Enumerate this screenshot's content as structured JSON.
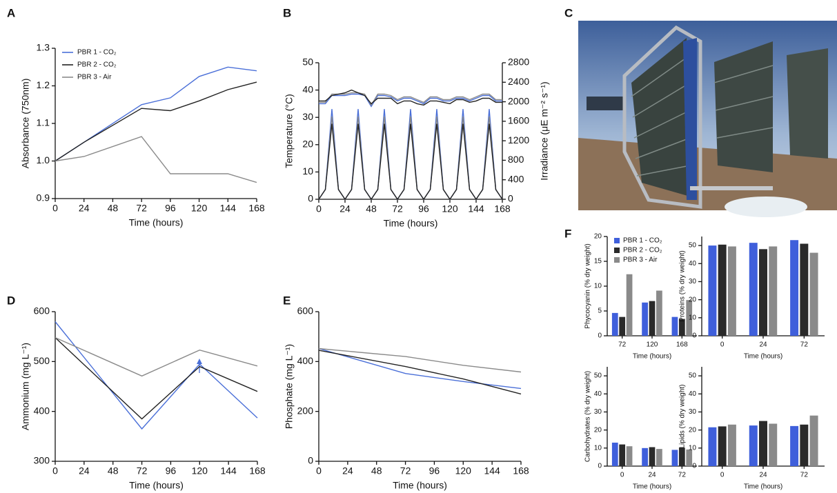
{
  "photo": {
    "panel": "C"
  },
  "chart_data": [
    {
      "type": "line",
      "panel": "A",
      "y_label": "Absorbance (750nm)",
      "x_label": "Time (hours)",
      "x": [
        0,
        24,
        72,
        96,
        120,
        144,
        168
      ],
      "xlim": [
        0,
        168
      ],
      "xticks": [
        0,
        24,
        48,
        72,
        96,
        120,
        144,
        168
      ],
      "ylim": [
        0.9,
        1.3
      ],
      "yticks": [
        0.9,
        {
          "value": 1,
          "label": "1.0"
        },
        1.1,
        1.2,
        1.3
      ],
      "legend": "upper left",
      "series": [
        {
          "name": "PBR 1 - CO₂",
          "color": "#4a6fd8",
          "values": [
            1.0,
            1.05,
            1.15,
            1.168,
            1.225,
            1.25,
            1.24
          ]
        },
        {
          "name": "PBR 2 - CO₂",
          "color": "#222222",
          "values": [
            1.0,
            1.05,
            1.14,
            1.134,
            1.16,
            1.19,
            1.21
          ]
        },
        {
          "name": "PBR 3 - Air",
          "color": "#8a8a8a",
          "values": [
            1.0,
            1.012,
            1.065,
            0.966,
            0.966,
            0.966,
            0.943
          ]
        }
      ]
    },
    {
      "type": "line",
      "panel": "B",
      "y_label": "Temperature (°C)",
      "y2_label": "Irradiance (μE m⁻² s⁻¹)",
      "x_label": "Time (hours)",
      "x": [
        0,
        6,
        12,
        18,
        24,
        30,
        36,
        42,
        48,
        54,
        60,
        66,
        72,
        78,
        84,
        90,
        96,
        102,
        108,
        114,
        120,
        126,
        132,
        138,
        144,
        150,
        156,
        162,
        168
      ],
      "xlim": [
        0,
        168
      ],
      "xticks": [
        0,
        24,
        48,
        72,
        96,
        120,
        144,
        168
      ],
      "ylim": [
        0,
        50
      ],
      "yticks": [
        0,
        10,
        20,
        30,
        40,
        50
      ],
      "y2lim": [
        0,
        2800
      ],
      "y2ticks": [
        0,
        400,
        800,
        1200,
        1600,
        2000,
        2400,
        2800
      ],
      "series": [
        {
          "color": "#4a6fd8",
          "values": [
            35,
            35,
            38,
            38,
            38,
            38.5,
            38.5,
            38,
            34,
            38,
            38,
            37.5,
            36,
            37,
            37,
            36,
            35,
            37,
            37,
            36,
            36,
            37,
            37,
            36,
            37,
            38,
            38,
            36,
            36
          ]
        },
        {
          "color": "#8a8a8a",
          "values": [
            35.5,
            35.5,
            38.5,
            38.5,
            38.5,
            39,
            39,
            38.5,
            34.5,
            38.5,
            38.5,
            38,
            36.5,
            37.5,
            37.5,
            36.5,
            35.5,
            37.5,
            37.5,
            36.5,
            36.5,
            37.5,
            37.5,
            36.5,
            37.5,
            38.5,
            38.5,
            36.5,
            36.5
          ]
        },
        {
          "color": "#222222",
          "values": [
            36,
            36,
            38,
            38.5,
            39,
            40,
            39,
            38,
            35,
            37,
            37,
            37,
            35,
            36,
            36,
            35,
            34.5,
            36,
            36,
            35.5,
            35,
            36.5,
            36.5,
            35.5,
            36,
            37,
            37,
            35.5,
            35.5
          ]
        },
        {
          "color": "#4a6fd8",
          "axis": "y2",
          "values": [
            0,
            200,
            1850,
            200,
            0,
            200,
            1850,
            200,
            0,
            200,
            1850,
            200,
            0,
            200,
            1850,
            200,
            0,
            200,
            1850,
            200,
            0,
            200,
            1850,
            200,
            0,
            200,
            1850,
            200,
            0
          ]
        },
        {
          "color": "#8a8a8a",
          "axis": "y2",
          "values": [
            0,
            200,
            1700,
            200,
            0,
            200,
            1700,
            200,
            0,
            200,
            1700,
            200,
            0,
            200,
            1700,
            200,
            0,
            200,
            1700,
            200,
            0,
            200,
            1700,
            200,
            0,
            200,
            1700,
            200,
            0
          ]
        },
        {
          "color": "#222222",
          "axis": "y2",
          "values": [
            0,
            200,
            1550,
            200,
            0,
            200,
            1550,
            200,
            0,
            200,
            1550,
            200,
            0,
            200,
            1550,
            200,
            0,
            200,
            1550,
            200,
            0,
            200,
            1550,
            200,
            0,
            200,
            1550,
            200,
            0
          ]
        }
      ]
    },
    {
      "type": "line",
      "panel": "D",
      "y_label": "Ammonium (mg L⁻¹)",
      "x_label": "Time (hours)",
      "x": [
        0,
        72,
        120,
        168
      ],
      "xlim": [
        0,
        168
      ],
      "xticks": [
        0,
        24,
        48,
        72,
        96,
        120,
        144,
        168
      ],
      "ylim": [
        300,
        600
      ],
      "yticks": [
        300,
        400,
        500,
        600
      ],
      "series": [
        {
          "color": "#4a6fd8",
          "values": [
            580,
            365,
            495,
            387
          ]
        },
        {
          "color": "#222222",
          "values": [
            548,
            385,
            490,
            440
          ]
        },
        {
          "color": "#8a8a8a",
          "values": [
            548,
            471,
            523,
            491
          ]
        }
      ]
    },
    {
      "type": "line",
      "panel": "E",
      "y_label": "Phosphate (mg L⁻¹)",
      "x_label": "Time (hours)",
      "x": [
        0,
        72,
        120,
        168
      ],
      "xlim": [
        0,
        168
      ],
      "xticks": [
        0,
        24,
        48,
        72,
        96,
        120,
        144,
        168
      ],
      "ylim": [
        0,
        600
      ],
      "yticks": [
        0,
        200,
        400,
        600
      ],
      "series": [
        {
          "color": "#4a6fd8",
          "values": [
            452,
            352,
            320,
            292
          ]
        },
        {
          "color": "#222222",
          "values": [
            445,
            380,
            330,
            270
          ]
        },
        {
          "color": "#8a8a8a",
          "values": [
            452,
            420,
            385,
            358
          ]
        }
      ]
    },
    {
      "type": "bar",
      "panel": "F",
      "y_label": "Phycocyanin (% dry weight)",
      "x_label": "Time (hours)",
      "categories": [
        "72",
        "120",
        "168"
      ],
      "ylim": [
        0,
        20
      ],
      "yticks": [
        0,
        5,
        10,
        15,
        20
      ],
      "legend": "upper left",
      "series": [
        {
          "name": "PBR 1 - CO₂",
          "color": "#3f5fdb",
          "values": [
            4.6,
            6.7,
            3.8
          ]
        },
        {
          "name": "PBR 2 - CO₂",
          "color": "#2a2a2a",
          "values": [
            3.8,
            7.0,
            3.4
          ]
        },
        {
          "name": "PBR 3 - Air",
          "color": "#8a8a8a",
          "values": [
            12.4,
            9.1,
            7.2
          ]
        }
      ]
    },
    {
      "type": "bar",
      "y_label": "Proteins (% dry weight)",
      "x_label": "Time (hours)",
      "categories": [
        "0",
        "24",
        "72"
      ],
      "ylim": [
        0,
        55
      ],
      "yticks": [
        0,
        10,
        20,
        30,
        40,
        50
      ],
      "series": [
        {
          "color": "#3f5fdb",
          "values": [
            50,
            51.5,
            53
          ]
        },
        {
          "color": "#2a2a2a",
          "values": [
            50.5,
            48,
            51
          ]
        },
        {
          "color": "#8a8a8a",
          "values": [
            49.5,
            49.5,
            46
          ]
        }
      ]
    },
    {
      "type": "bar",
      "y_label": "Carbohydrates (% dry weight)",
      "x_label": "Time (hours)",
      "categories": [
        "0",
        "24",
        "72"
      ],
      "ylim": [
        0,
        55
      ],
      "yticks": [
        0,
        10,
        20,
        30,
        40,
        50
      ],
      "series": [
        {
          "color": "#3f5fdb",
          "values": [
            13,
            10,
            9
          ]
        },
        {
          "color": "#2a2a2a",
          "values": [
            12,
            10.5,
            10.2
          ]
        },
        {
          "color": "#8a8a8a",
          "values": [
            11,
            9.5,
            9.2
          ]
        }
      ]
    },
    {
      "type": "bar",
      "y_label": "Lipids (% dry weight)",
      "x_label": "Time (hours)",
      "categories": [
        "0",
        "24",
        "72"
      ],
      "ylim": [
        0,
        55
      ],
      "yticks": [
        0,
        10,
        20,
        30,
        40,
        50
      ],
      "series": [
        {
          "color": "#3f5fdb",
          "values": [
            21.5,
            22.5,
            22.2
          ]
        },
        {
          "color": "#2a2a2a",
          "values": [
            22,
            25,
            23
          ]
        },
        {
          "color": "#8a8a8a",
          "values": [
            23,
            23.5,
            28
          ]
        }
      ]
    }
  ]
}
